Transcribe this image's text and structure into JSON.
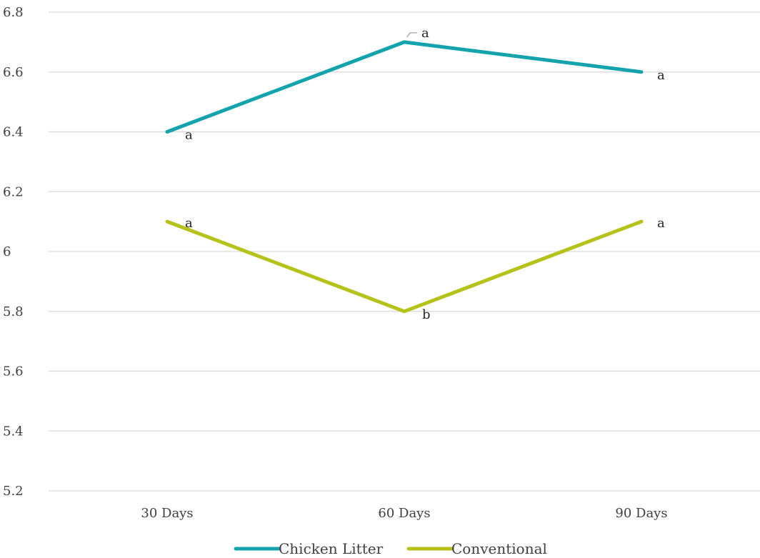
{
  "chart_data": {
    "type": "line",
    "categories": [
      "30 Days",
      "60 Days",
      "90 Days"
    ],
    "series": [
      {
        "name": "Chicken Litter",
        "values": [
          6.4,
          6.7,
          6.6
        ],
        "labels": [
          "a",
          "a",
          "a"
        ],
        "color": "#12a3ac"
      },
      {
        "name": "Conventional",
        "values": [
          6.1,
          5.8,
          6.1
        ],
        "labels": [
          "a",
          "b",
          "a"
        ],
        "color": "#b5c219"
      }
    ],
    "yticks": [
      "5.2",
      "5.4",
      "5.6",
      "5.8",
      "6",
      "6.2",
      "6.4",
      "6.6",
      "6.8"
    ],
    "ylim": [
      5.2,
      6.8
    ],
    "grid": true,
    "legend_position": "bottom"
  }
}
